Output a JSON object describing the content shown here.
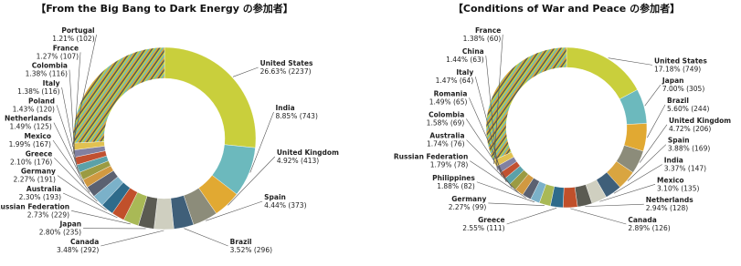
{
  "chart_data": [
    {
      "type": "donut",
      "title": "【From the Big Bang to Dark Energy の参加者】",
      "categories": [
        "United States",
        "India",
        "United Kingdom",
        "Spain",
        "Brazil",
        "Canada",
        "Japan",
        "Russian Federation",
        "Australia",
        "Germany",
        "Greece",
        "Mexico",
        "Netherlands",
        "Poland",
        "Italy",
        "Colombia",
        "France",
        "Portugal",
        null
      ],
      "values": [
        26.63,
        8.85,
        4.92,
        4.44,
        3.52,
        3.48,
        2.8,
        2.73,
        2.3,
        2.27,
        2.1,
        1.99,
        1.49,
        1.43,
        1.38,
        1.38,
        1.27,
        1.21,
        25.81
      ],
      "value_labels": [
        "26.63% (2237)",
        "8.85% (743)",
        "4.92% (413)",
        "4.44% (373)",
        "3.52% (296)",
        "3.48% (292)",
        "2.80% (235)",
        "2.73% (229)",
        "2.30% (193)",
        "2.27% (191)",
        "2.10% (176)",
        "1.99% (167)",
        "1.49% (125)",
        "1.43% (120)",
        "1.38% (116)",
        "1.38% (116)",
        "1.27% (107)",
        "1.21% (102)",
        null
      ],
      "colors": [
        "#c9cf3c",
        "#6cb9bd",
        "#e1a932",
        "#8c8c7a",
        "#3f5f79",
        "#cfcfc0",
        "#5b5b52",
        "#a9b956",
        "#c1502b",
        "#2e6b8b",
        "#7bb1c9",
        "#5b6171",
        "#d19941",
        "#9b9b42",
        "#5ba1a9",
        "#c15131",
        "#8181a1",
        "#e1c151",
        null
      ]
    },
    {
      "type": "donut",
      "title": "【Conditions of War and Peace の参加者】",
      "categories": [
        "United States",
        "Japan",
        "Brazil",
        "United Kingdom",
        "Spain",
        "India",
        "Mexico",
        "Netherlands",
        "Canada",
        "Greece",
        "Germany",
        "Philippines",
        "Russian Federation",
        "Australia",
        "Colombia",
        "Romania",
        "Italy",
        "China",
        "France",
        null
      ],
      "values": [
        17.18,
        7.0,
        5.6,
        4.72,
        3.88,
        3.37,
        3.1,
        2.94,
        2.89,
        2.55,
        2.27,
        1.88,
        1.79,
        1.74,
        1.58,
        1.49,
        1.47,
        1.44,
        1.38,
        31.73
      ],
      "value_labels": [
        "17.18% (749)",
        "7.00% (305)",
        "5.60% (244)",
        "4.72% (206)",
        "3.88% (169)",
        "3.37% (147)",
        "3.10% (135)",
        "2.94% (128)",
        "2.89% (126)",
        "2.55% (111)",
        "2.27% (99)",
        "1.88% (82)",
        "1.79% (78)",
        "1.74% (76)",
        "1.58% (69)",
        "1.49% (65)",
        "1.47% (64)",
        "1.44% (63)",
        "1.38% (60)",
        null
      ],
      "colors": [
        "#c9cf3c",
        "#6cb9bd",
        "#e1a932",
        "#8c8c7a",
        "#d9a540",
        "#3f5f79",
        "#cfcfc0",
        "#5b5b52",
        "#c1502b",
        "#2e6b8b",
        "#a9b956",
        "#7bb1c9",
        "#5b6171",
        "#d19941",
        "#9b9b42",
        "#5ba1a9",
        "#c15131",
        "#8181a1",
        "#e1c151",
        null
      ]
    }
  ]
}
